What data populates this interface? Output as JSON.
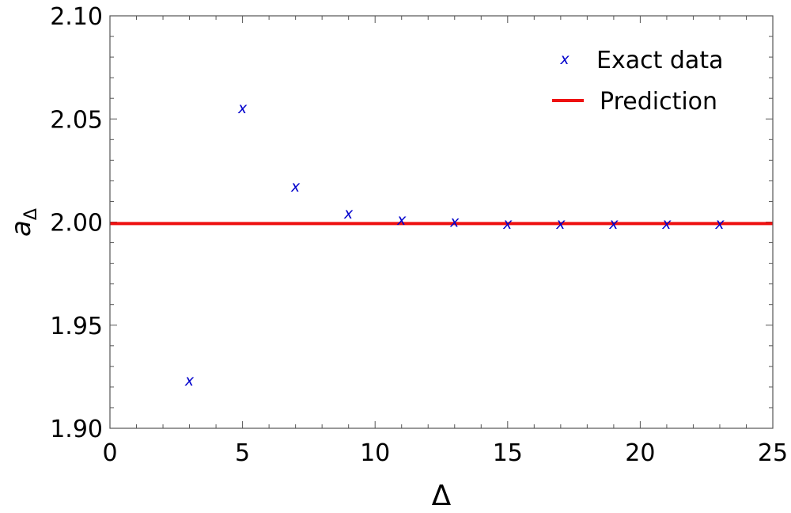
{
  "chart_data": {
    "type": "scatter",
    "xlabel": "Δ",
    "ylabel_main": "a",
    "ylabel_sub": "Δ",
    "xlim": [
      0,
      25
    ],
    "ylim": [
      1.9,
      2.1
    ],
    "xticks": [
      0,
      5,
      10,
      15,
      20,
      25
    ],
    "xtick_labels": [
      "0",
      "5",
      "10",
      "15",
      "20",
      "25"
    ],
    "yticks": [
      1.9,
      1.95,
      2.0,
      2.05,
      2.1
    ],
    "ytick_labels": [
      "1.90",
      "1.95",
      "2.00",
      "2.05",
      "2.10"
    ],
    "grid": false,
    "legend_position": "top-right",
    "series": [
      {
        "name": "Exact data",
        "kind": "scatter",
        "marker_glyph": "x",
        "color": "#0000cc",
        "x": [
          3,
          5,
          7,
          9,
          11,
          13,
          15,
          17,
          19,
          21,
          23
        ],
        "y": [
          1.923,
          2.055,
          2.017,
          2.004,
          2.001,
          2.0,
          1.999,
          1.999,
          1.999,
          1.999,
          1.999
        ]
      },
      {
        "name": "Prediction",
        "kind": "line",
        "color": "#ee1111",
        "x": [
          0,
          25
        ],
        "y": [
          1.9993,
          1.9993
        ]
      }
    ]
  }
}
